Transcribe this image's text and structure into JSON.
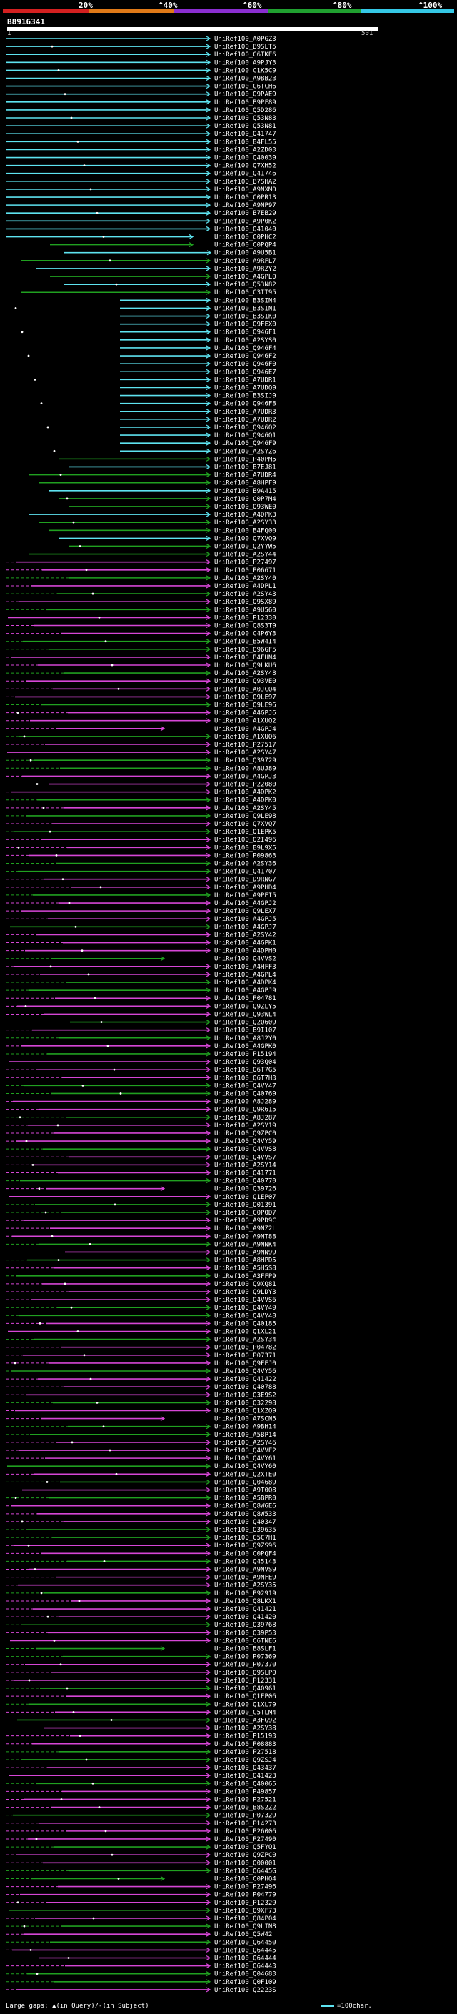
{
  "header": {
    "percent_labels": [
      "20%",
      "^40%",
      "^60%",
      "^80%",
      "^100%"
    ],
    "identity_colors": [
      "#d42020",
      "#e07a18",
      "#8a2ed0",
      "#20a030",
      "#35c8e6"
    ]
  },
  "query": {
    "id": "B8916341",
    "start": "1",
    "end": "501"
  },
  "colors": {
    "cyan": "#5ee3f0",
    "green": "#20a020",
    "magenta": "#d646d6",
    "dot": "#ffffff"
  },
  "hits": [
    "UniRef100_A0PGZ3",
    "UniRef100_B9SLT5",
    "UniRef100_C6TKE6",
    "UniRef100_A9PJY3",
    "UniRef100_C1K5C9",
    "UniRef100_A9BB23",
    "UniRef100_C6TCH6",
    "UniRef100_Q9PAE9",
    "UniRef100_B9PF89",
    "UniRef100_Q5D286",
    "UniRef100_Q53N83",
    "UniRef100_Q53N81",
    "UniRef100_Q41747",
    "UniRef100_B4FL55",
    "UniRef100_A2ZD03",
    "UniRef100_Q40039",
    "UniRef100_Q7XH52",
    "UniRef100_Q41746",
    "UniRef100_B7SHA2",
    "UniRef100_A9NXM0",
    "UniRef100_C0PR13",
    "UniRef100_A9NP97",
    "UniRef100_B7EB29",
    "UniRef100_A9P0K2",
    "UniRef100_Q41040",
    "UniRef100_C0PHC2",
    "UniRef100_C0PQP4",
    "UniRef100_A9U5B1",
    "UniRef100_A9RFL7",
    "UniRef100_A9RZY2",
    "UniRef100_A4GPL0",
    "UniRef100_Q53N82",
    "UniRef100_C3IT95",
    "UniRef100_B3SIN4",
    "UniRef100_B3SIN1",
    "UniRef100_B3SIK0",
    "UniRef100_Q9FEX0",
    "UniRef100_Q946F1",
    "UniRef100_A2SYS0",
    "UniRef100_Q946F4",
    "UniRef100_Q946F2",
    "UniRef100_Q946F0",
    "UniRef100_Q946E7",
    "UniRef100_A7UDR1",
    "UniRef100_A7UDQ9",
    "UniRef100_B3SIJ9",
    "UniRef100_Q946F8",
    "UniRef100_A7UDR3",
    "UniRef100_A7UDR2",
    "UniRef100_Q946Q2",
    "UniRef100_Q946Q1",
    "UniRef100_Q946F9",
    "UniRef100_A2SYZ6",
    "UniRef100_P40PM5",
    "UniRef100_B7EJ81",
    "UniRef100_A7UDR4",
    "UniRef100_A8HPF9",
    "UniRef100_B9A415",
    "UniRef100_C0P7M4",
    "UniRef100_Q93WE0",
    "UniRef100_A4DPK3",
    "UniRef100_A2SY33",
    "UniRef100_B4FQ00",
    "UniRef100_Q7XVQ9",
    "UniRef100_Q2YYW5",
    "UniRef100_A2SY44",
    "UniRef100_P27497",
    "UniRef100_P06671",
    "UniRef100_A2SY40",
    "UniRef100_A4DPL1",
    "UniRef100_A2SY43",
    "UniRef100_Q9SX89",
    "UniRef100_A9U560",
    "UniRef100_P12330",
    "UniRef100_Q8S3T9",
    "UniRef100_C4P6Y3",
    "UniRef100_B5W4I4",
    "UniRef100_Q96GF5",
    "UniRef100_B4FUN4",
    "UniRef100_Q9LKU6",
    "UniRef100_A2SY48",
    "UniRef100_Q93VE0",
    "UniRef100_A0JCQ4",
    "UniRef100_Q9LE97",
    "UniRef100_Q9LE96",
    "UniRef100_A4GPJ6",
    "UniRef100_A1XUQ2",
    "UniRef100_A4GPJ4",
    "UniRef100_A1XUQ6",
    "UniRef100_P27517",
    "UniRef100_A2SY47",
    "UniRef100_Q39729",
    "UniRef100_A8UJ89",
    "UniRef100_A4GPJ3",
    "UniRef100_P22080",
    "UniRef100_A4DPK2",
    "UniRef100_A4DPK0",
    "UniRef100_A2SY45",
    "UniRef100_Q9LE98",
    "UniRef100_Q7XVQ7",
    "UniRef100_Q1EPK5",
    "UniRef100_Q2I496",
    "UniRef100_B9L9X5",
    "UniRef100_P09863",
    "UniRef100_A2SY36",
    "UniRef100_Q41707",
    "UniRef100_D9RNG7",
    "UniRef100_A9PHD4",
    "UniRef100_A9PEI5",
    "UniRef100_A4GPJ2",
    "UniRef100_Q9LEX7",
    "UniRef100_A4GPJ5",
    "UniRef100_A4GPJ7",
    "UniRef100_A2SY42",
    "UniRef100_A4GPK1",
    "UniRef100_A4DPH0",
    "UniRef100_Q4VVS2",
    "UniRef100_A4HFF3",
    "UniRef100_A4GPL4",
    "UniRef100_A4DPK4",
    "UniRef100_A4GPJ9",
    "UniRef100_P04781",
    "UniRef100_Q9ZLY5",
    "UniRef100_Q93WL4",
    "UniRef100_Q2Q609",
    "UniRef100_B9I107",
    "UniRef100_A8J2Y0",
    "UniRef100_A4GPK0",
    "UniRef100_P15194",
    "UniRef100_Q93Q04",
    "UniRef100_Q6T7G5",
    "UniRef100_Q6T7H3",
    "UniRef100_Q4VY47",
    "UniRef100_Q40769",
    "UniRef100_A8J289",
    "UniRef100_Q9R615",
    "UniRef100_A8J287",
    "UniRef100_A2SY19",
    "UniRef100_Q9ZPC0",
    "UniRef100_Q4VY59",
    "UniRef100_Q4VVS8",
    "UniRef100_Q4VVS7",
    "UniRef100_A2SY14",
    "UniRef100_Q41771",
    "UniRef100_Q40770",
    "UniRef100_Q39726",
    "UniRef100_Q1EP07",
    "UniRef100_Q01391",
    "UniRef100_C0PQD7",
    "UniRef100_A9PD9C",
    "UniRef100_A9NZ2L",
    "UniRef100_A9NT88",
    "UniRef100_A9NNK4",
    "UniRef100_A9NN99",
    "UniRef100_A8HPD5",
    "UniRef100_A5H5S8",
    "UniRef100_A3FFP9",
    "UniRef100_Q9XQ81",
    "UniRef100_Q9LDY3",
    "UniRef100_Q4VVS6",
    "UniRef100_Q4VY49",
    "UniRef100_Q4VY48",
    "UniRef100_Q40185",
    "UniRef100_Q1XL21",
    "UniRef100_A2SY34",
    "UniRef100_P04782",
    "UniRef100_P07371",
    "UniRef100_Q9FEJ0",
    "UniRef100_Q4VY56",
    "UniRef100_Q41422",
    "UniRef100_Q40788",
    "UniRef100_Q3E9S2",
    "UniRef100_Q32298",
    "UniRef100_Q1XZQ9",
    "UniRef100_A7SCN5",
    "UniRef100_A9BH14",
    "UniRef100_A5BP14",
    "UniRef100_A2SY46",
    "UniRef100_Q4VVE2",
    "UniRef100_Q4VY61",
    "UniRef100_Q4VY60",
    "UniRef100_Q2XTE0",
    "UniRef100_Q04689",
    "UniRef100_A9T0Q8",
    "UniRef100_A5BPR0",
    "UniRef100_Q8W6E6",
    "UniRef100_Q8W533",
    "UniRef100_Q40347",
    "UniRef100_Q39635",
    "UniRef100_C5C7H1",
    "UniRef100_Q9ZS96",
    "UniRef100_C0PQF4",
    "UniRef100_Q45143",
    "UniRef100_A9NVS9",
    "UniRef100_A9NFE9",
    "UniRef100_A2SY35",
    "UniRef100_P92919",
    "UniRef100_Q8LKX1",
    "UniRef100_Q41421",
    "UniRef100_Q41420",
    "UniRef100_Q39768",
    "UniRef100_Q39P53",
    "UniRef100_C6TNE6",
    "UniRef100_B8SLF1",
    "UniRef100_P07369",
    "UniRef100_P07370",
    "UniRef100_Q9SLP0",
    "UniRef100_P12331",
    "UniRef100_Q40961",
    "UniRef100_Q1EP06",
    "UniRef100_Q1XL79",
    "UniRef100_C5TLM4",
    "UniRef100_A3FG92",
    "UniRef100_A2SY38",
    "UniRef100_P15193",
    "UniRef100_P08883",
    "UniRef100_P27518",
    "UniRef100_Q9ZSJ4",
    "UniRef100_Q43437",
    "UniRef100_Q41423",
    "UniRef100_Q40065",
    "UniRef100_P49857",
    "UniRef100_P27521",
    "UniRef100_B8S2Z2",
    "UniRef100_P07329",
    "UniRef100_P14273",
    "UniRef100_P26006",
    "UniRef100_P27490",
    "UniRef100_Q5FYQ1",
    "UniRef100_Q9ZPC0",
    "UniRef100_Q00001",
    "UniRef100_Q6445G",
    "UniRef100_C0PHQ4",
    "UniRef100_P27496",
    "UniRef100_P04779",
    "UniRef100_P12329",
    "UniRef100_Q9XF73",
    "UniRef100_Q84P04",
    "UniRef100_Q9LIN8",
    "UniRef100_Q5W42",
    "UniRef100_Q64450",
    "UniRef100_Q64445",
    "UniRef100_Q64444",
    "UniRef100_Q64443",
    "UniRef100_Q04683",
    "UniRef100_Q0F109",
    "UniRef100_Q2223S"
  ],
  "footer": {
    "gaps_note": "Large gaps: ▲(in Query)/-(in Subject)",
    "scale_note": "=100char."
  }
}
